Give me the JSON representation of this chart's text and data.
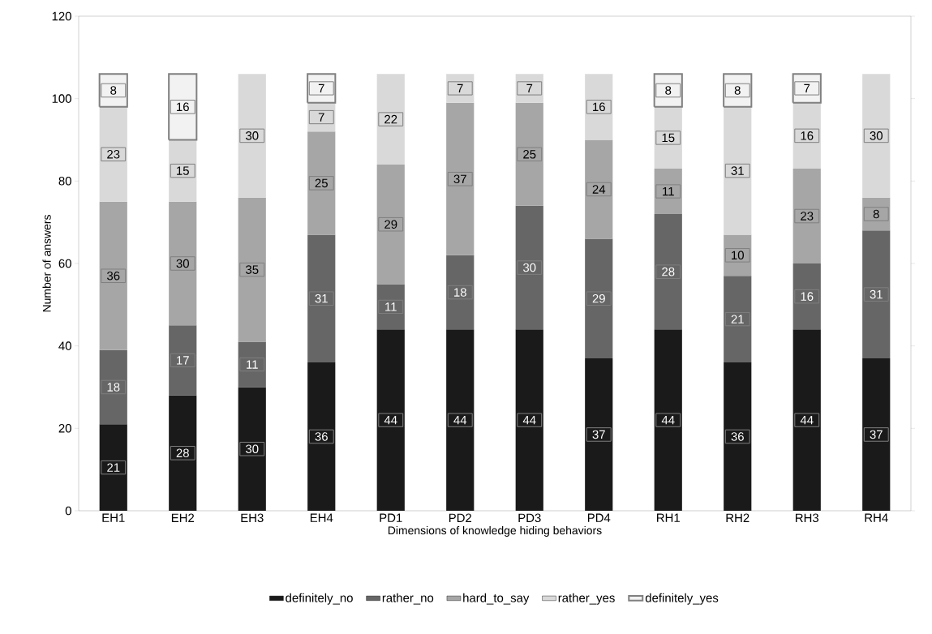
{
  "chart_data": {
    "type": "bar",
    "stacked": true,
    "xlabel": "Dimensions of knowledge hiding behaviors",
    "ylabel": "Number of answers",
    "categories": [
      "EH1",
      "EH2",
      "EH3",
      "EH4",
      "PD1",
      "PD2",
      "PD3",
      "PD4",
      "RH1",
      "RH2",
      "RH3",
      "RH4"
    ],
    "series": [
      {
        "name": "definitely_no",
        "color": "#1a1a1a",
        "values": [
          21,
          28,
          30,
          36,
          44,
          44,
          44,
          37,
          44,
          36,
          44,
          37
        ]
      },
      {
        "name": "rather_no",
        "color": "#666666",
        "values": [
          18,
          17,
          11,
          31,
          11,
          18,
          30,
          29,
          28,
          21,
          16,
          31
        ]
      },
      {
        "name": "hard_to_say",
        "color": "#a6a6a6",
        "values": [
          36,
          30,
          35,
          25,
          29,
          37,
          25,
          24,
          11,
          10,
          23,
          8
        ]
      },
      {
        "name": "rather_yes",
        "color": "#d9d9d9",
        "values": [
          23,
          15,
          30,
          7,
          22,
          7,
          7,
          16,
          15,
          31,
          16,
          30
        ]
      },
      {
        "name": "definitely_yes",
        "color": "#f2f2f2",
        "values": [
          8,
          16,
          null,
          7,
          null,
          null,
          null,
          null,
          8,
          8,
          7,
          null
        ]
      }
    ],
    "ylim": [
      0,
      120
    ],
    "yticks": [
      0,
      20,
      40,
      60,
      80,
      100,
      120
    ],
    "data_labels": true,
    "legend": "bottom",
    "grid": false
  }
}
